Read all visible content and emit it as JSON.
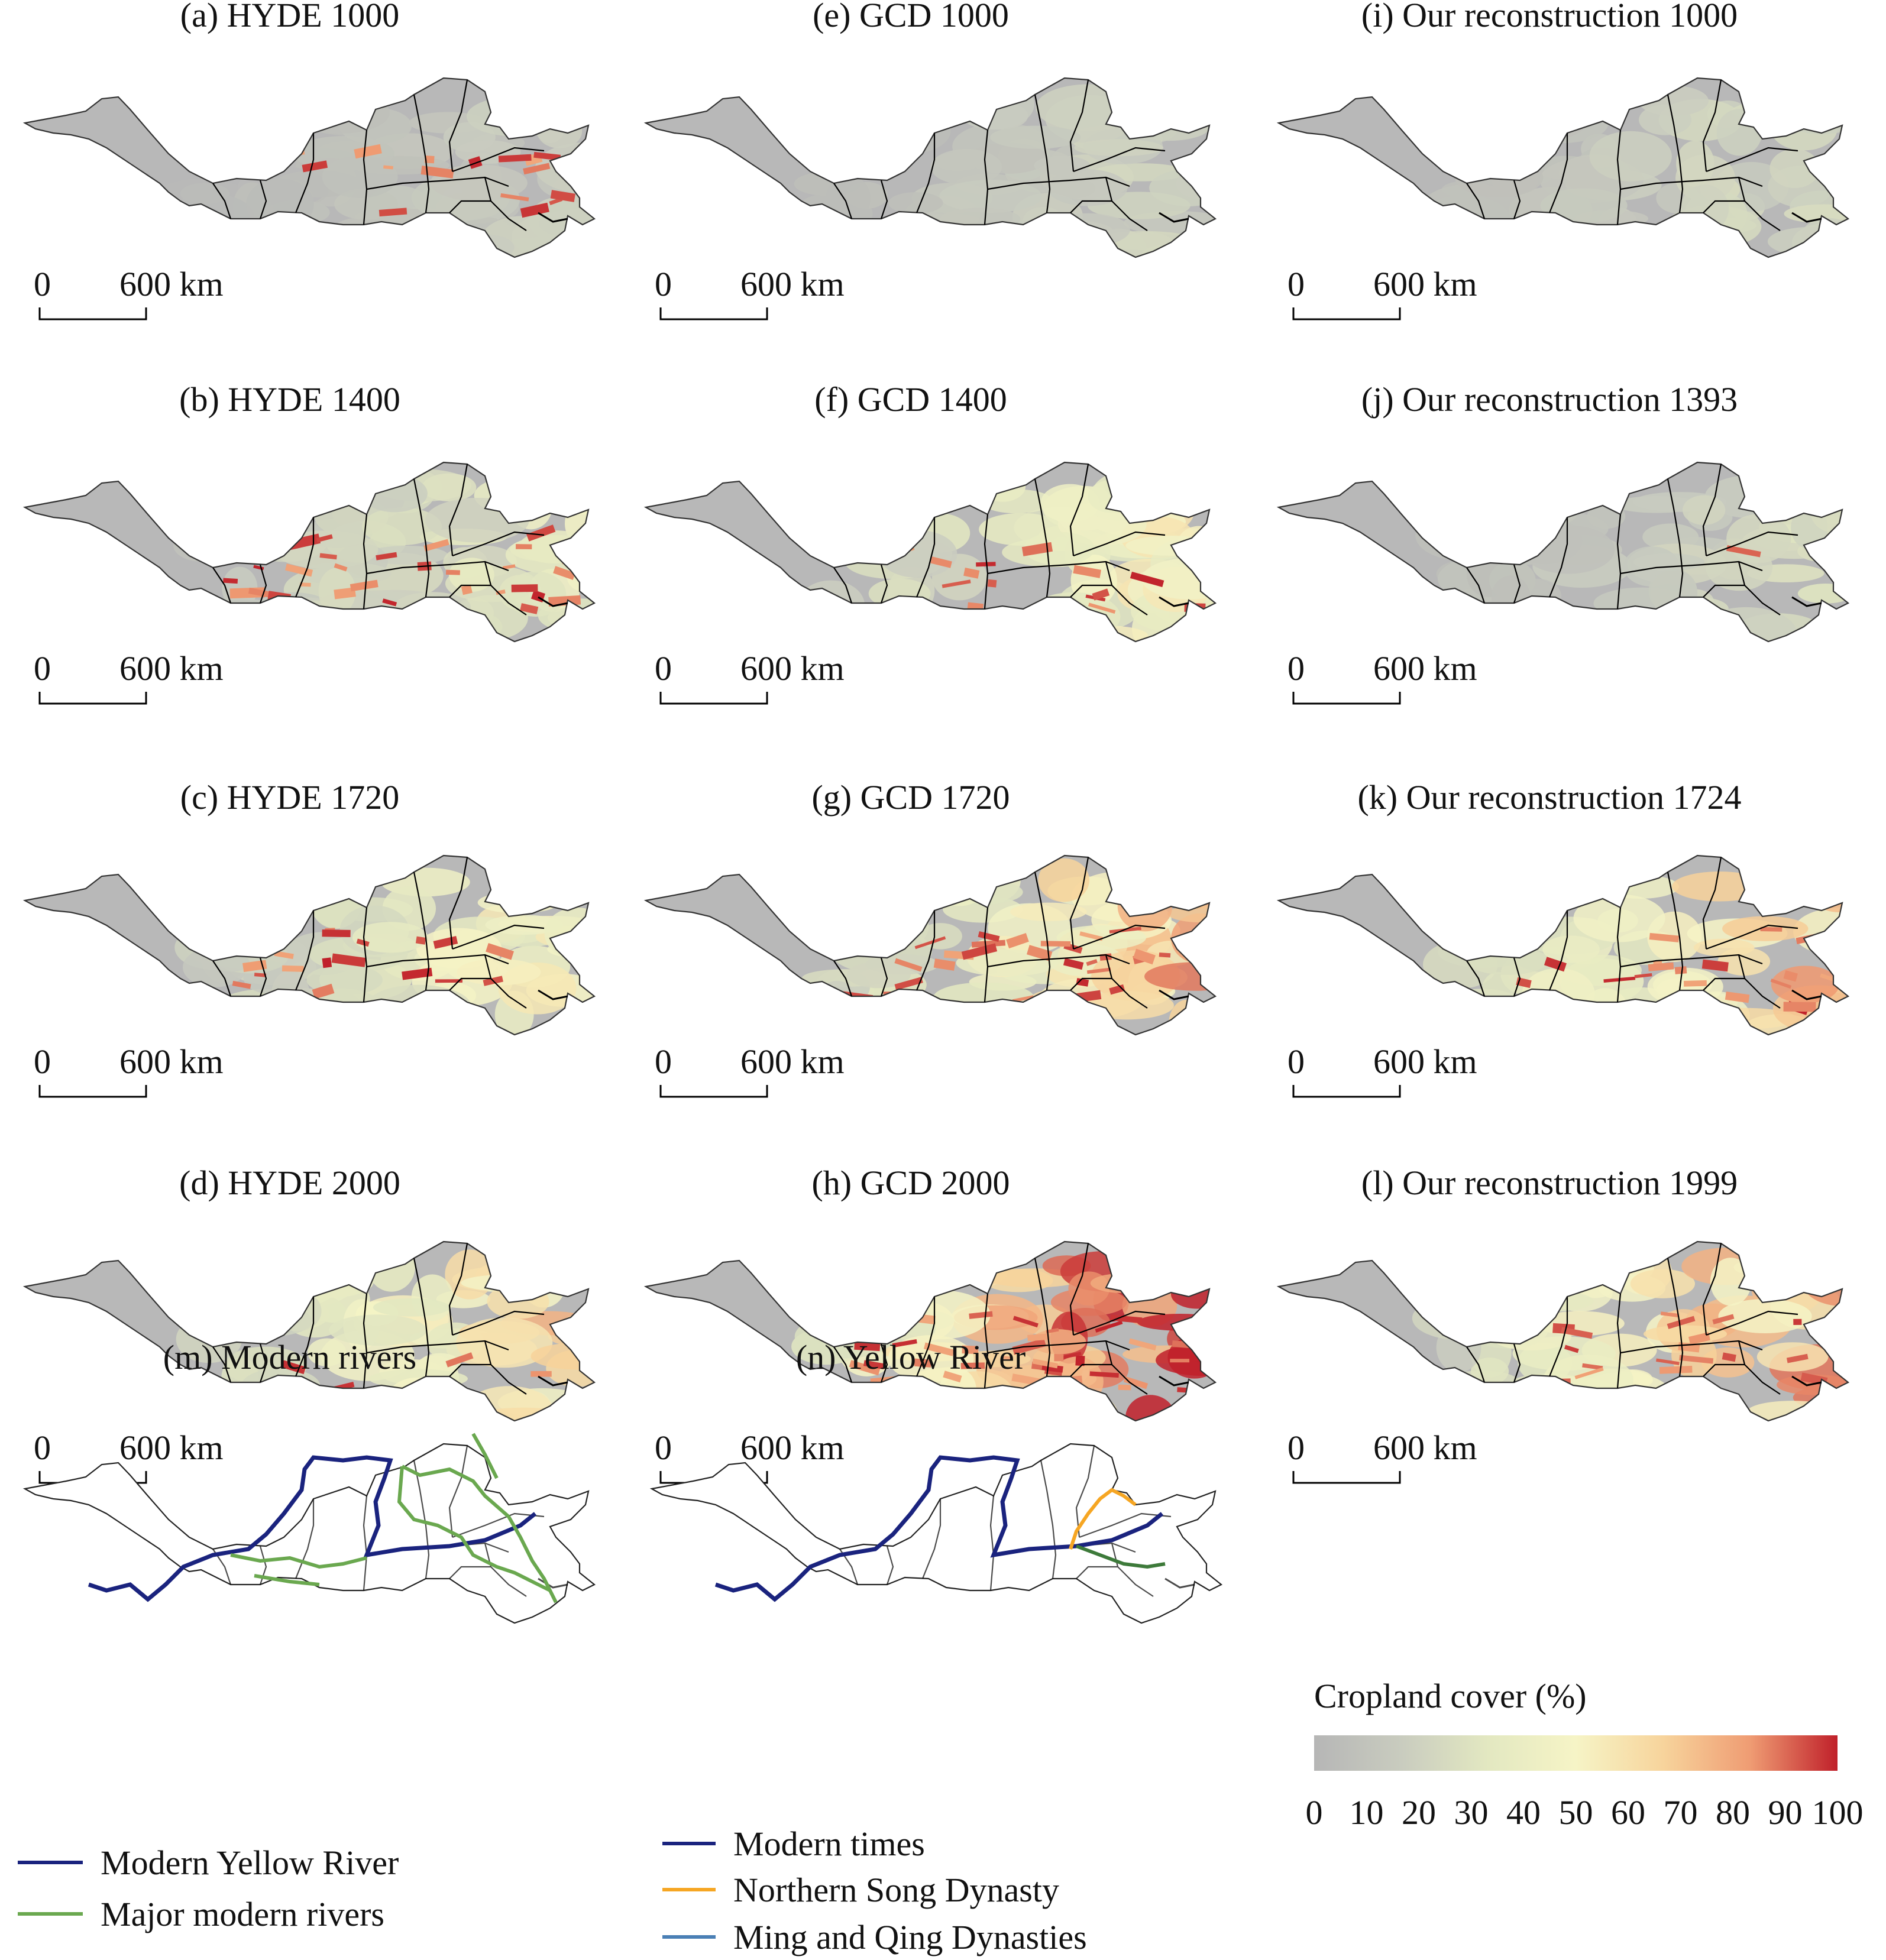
{
  "panels": [
    {
      "title": "(a) HYDE 1000",
      "intensity": 0.18,
      "hot": 0.45
    },
    {
      "title": "(e) GCD 1000",
      "intensity": 0.22,
      "hot": 0.0
    },
    {
      "title": "(i) Our reconstruction 1000",
      "intensity": 0.25,
      "hot": 0.0
    },
    {
      "title": "(b) HYDE 1400",
      "intensity": 0.35,
      "hot": 0.85
    },
    {
      "title": "(f) GCD 1400",
      "intensity": 0.45,
      "hot": 0.35
    },
    {
      "title": "(j) Our reconstruction 1393",
      "intensity": 0.25,
      "hot": 0.05
    },
    {
      "title": "(c) HYDE 1720",
      "intensity": 0.45,
      "hot": 0.45
    },
    {
      "title": "(g) GCD 1720",
      "intensity": 0.6,
      "hot": 0.8
    },
    {
      "title": "(k) Our reconstruction 1724",
      "intensity": 0.6,
      "hot": 0.5
    },
    {
      "title": "(d) HYDE 2000",
      "intensity": 0.55,
      "hot": 0.1
    },
    {
      "title": "(h) GCD 2000",
      "intensity": 0.85,
      "hot": 0.95
    },
    {
      "title": "(l) Our reconstruction 1999",
      "intensity": 0.65,
      "hot": 0.5
    }
  ],
  "scalebar": {
    "zero": "0",
    "distance": "600 km"
  },
  "rivers_panel": {
    "title": "(m) Modern rivers",
    "legend": [
      {
        "label": "Modern Yellow River",
        "color": "#1a237e"
      },
      {
        "label": "Major modern rivers",
        "color": "#6aa84f"
      }
    ]
  },
  "yellow_river_panel": {
    "title": "(n) Yellow River",
    "legend": [
      {
        "label": "Modern times",
        "color": "#1a237e"
      },
      {
        "label": "Northern Song Dynasty",
        "color": "#f6a623"
      },
      {
        "label": "Ming and Qing Dynasties",
        "color": "#4a7fb5"
      }
    ]
  },
  "colorbar": {
    "title": "Cropland cover (%)",
    "ticks": [
      "0",
      "10",
      "20",
      "30",
      "40",
      "50",
      "60",
      "70",
      "80",
      "90",
      "100"
    ],
    "colors": [
      "#b6b6b6",
      "#c9ccbf",
      "#e3e8c1",
      "#f6f4c6",
      "#f7d49c",
      "#ef9c73",
      "#c0202a"
    ]
  }
}
